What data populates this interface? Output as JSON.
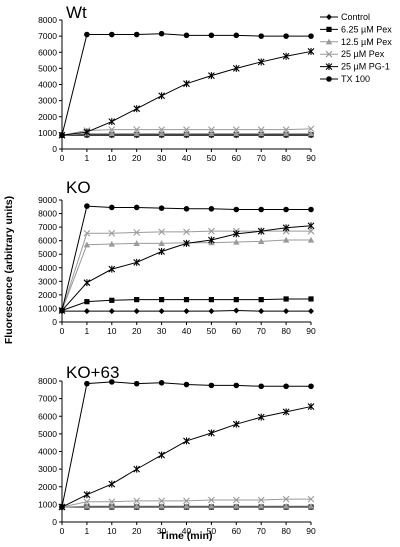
{
  "ylabel": "Fluorescence (arbitrary units)",
  "xlabel": "Time (min)",
  "legend_entries": [
    {
      "label": "Control",
      "marker": "diamond",
      "color": "#000000"
    },
    {
      "label": "6.25 µM Pex",
      "marker": "square",
      "color": "#000000"
    },
    {
      "label": "12.5 µM Pex",
      "marker": "triangle",
      "color": "#999999"
    },
    {
      "label": "25 µM Pex",
      "marker": "x",
      "color": "#999999"
    },
    {
      "label": "25 µM PG-1",
      "marker": "star",
      "color": "#000000"
    },
    {
      "label": "TX 100",
      "marker": "circle",
      "color": "#000000"
    }
  ],
  "chart_data": [
    {
      "type": "line",
      "title": "Wt",
      "x": [
        0,
        1,
        10,
        20,
        30,
        40,
        50,
        60,
        70,
        80,
        90
      ],
      "xticks": [
        "0",
        "1",
        "10",
        "20",
        "30",
        "40",
        "50",
        "60",
        "70",
        "80",
        "90"
      ],
      "ylim": [
        0,
        8000
      ],
      "yticks": [
        "0",
        "1000",
        "2000",
        "3000",
        "4000",
        "5000",
        "6000",
        "7000",
        "8000"
      ],
      "grid": false,
      "legend": "right",
      "series": [
        {
          "name": "Control",
          "values": [
            850,
            850,
            850,
            850,
            850,
            850,
            850,
            850,
            850,
            850,
            850
          ]
        },
        {
          "name": "6.25 µM Pex",
          "values": [
            850,
            880,
            880,
            880,
            880,
            880,
            880,
            880,
            880,
            880,
            880
          ]
        },
        {
          "name": "12.5 µM Pex",
          "values": [
            850,
            950,
            950,
            950,
            950,
            950,
            950,
            950,
            950,
            950,
            950
          ]
        },
        {
          "name": "25 µM Pex",
          "values": [
            850,
            1150,
            1200,
            1200,
            1200,
            1200,
            1200,
            1200,
            1200,
            1200,
            1250
          ]
        },
        {
          "name": "25 µM PG-1",
          "values": [
            850,
            1050,
            1700,
            2500,
            3300,
            4050,
            4550,
            5000,
            5400,
            5750,
            6050
          ]
        },
        {
          "name": "TX 100",
          "values": [
            850,
            7100,
            7100,
            7100,
            7150,
            7050,
            7050,
            7050,
            7000,
            7000,
            7000
          ]
        }
      ]
    },
    {
      "type": "line",
      "title": "KO",
      "x": [
        0,
        1,
        10,
        20,
        30,
        40,
        50,
        60,
        70,
        80,
        90
      ],
      "xticks": [
        "0",
        "1",
        "10",
        "20",
        "30",
        "40",
        "50",
        "60",
        "70",
        "80",
        "90"
      ],
      "ylim": [
        0,
        9000
      ],
      "yticks": [
        "0",
        "1000",
        "2000",
        "3000",
        "4000",
        "5000",
        "6000",
        "7000",
        "8000",
        "9000"
      ],
      "grid": false,
      "series": [
        {
          "name": "Control",
          "values": [
            800,
            800,
            800,
            800,
            800,
            800,
            800,
            850,
            800,
            800,
            800
          ]
        },
        {
          "name": "6.25 µM Pex",
          "values": [
            850,
            1500,
            1600,
            1650,
            1650,
            1650,
            1650,
            1650,
            1650,
            1700,
            1700
          ]
        },
        {
          "name": "12.5 µM Pex",
          "values": [
            850,
            5700,
            5750,
            5800,
            5800,
            5850,
            5850,
            5900,
            5950,
            6050,
            6050
          ]
        },
        {
          "name": "25 µM Pex",
          "values": [
            850,
            6550,
            6550,
            6600,
            6650,
            6650,
            6700,
            6700,
            6700,
            6700,
            6700
          ]
        },
        {
          "name": "25 µM PG-1",
          "values": [
            850,
            2900,
            3900,
            4400,
            5200,
            5800,
            6050,
            6500,
            6700,
            6950,
            7100
          ]
        },
        {
          "name": "TX 100",
          "values": [
            850,
            8550,
            8450,
            8450,
            8400,
            8350,
            8350,
            8300,
            8300,
            8300,
            8300
          ]
        }
      ]
    },
    {
      "type": "line",
      "title": "KO+63",
      "x": [
        0,
        1,
        10,
        20,
        30,
        40,
        50,
        60,
        70,
        80,
        90
      ],
      "xticks": [
        "0",
        "1",
        "10",
        "20",
        "30",
        "40",
        "50",
        "60",
        "70",
        "80",
        "90"
      ],
      "ylim": [
        0,
        8000
      ],
      "yticks": [
        "0",
        "1000",
        "2000",
        "3000",
        "4000",
        "5000",
        "6000",
        "7000",
        "8000"
      ],
      "grid": false,
      "series": [
        {
          "name": "Control",
          "values": [
            850,
            850,
            850,
            850,
            850,
            850,
            850,
            850,
            850,
            850,
            850
          ]
        },
        {
          "name": "6.25 µM Pex",
          "values": [
            850,
            850,
            850,
            850,
            850,
            850,
            850,
            850,
            850,
            850,
            850
          ]
        },
        {
          "name": "12.5 µM Pex",
          "values": [
            850,
            900,
            900,
            900,
            900,
            900,
            900,
            900,
            900,
            900,
            900
          ]
        },
        {
          "name": "25 µM Pex",
          "values": [
            850,
            1150,
            1150,
            1200,
            1200,
            1200,
            1250,
            1250,
            1250,
            1300,
            1300
          ]
        },
        {
          "name": "25 µM PG-1",
          "values": [
            850,
            1550,
            2150,
            3000,
            3800,
            4600,
            5050,
            5550,
            5950,
            6250,
            6550
          ]
        },
        {
          "name": "TX 100",
          "values": [
            850,
            7850,
            7950,
            7850,
            7900,
            7800,
            7750,
            7750,
            7700,
            7700,
            7700
          ]
        }
      ]
    }
  ]
}
